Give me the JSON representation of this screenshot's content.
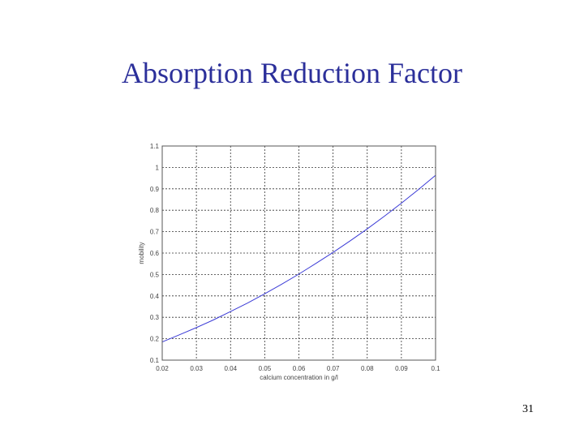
{
  "slide": {
    "title": "Absorption Reduction Factor",
    "page_number": "31"
  },
  "chart_data": {
    "type": "line",
    "xlabel": "calcium concentration in g/l",
    "ylabel": "mobility",
    "xlim": [
      0.02,
      0.1
    ],
    "ylim": [
      0.1,
      1.1
    ],
    "xticks": [
      "0.02",
      "0.03",
      "0.04",
      "0.05",
      "0.06",
      "0.07",
      "0.08",
      "0.09",
      "0.1"
    ],
    "yticks": [
      "0.1",
      "0.2",
      "0.3",
      "0.4",
      "0.5",
      "0.6",
      "0.7",
      "0.8",
      "0.9",
      "1",
      "1.1"
    ],
    "grid": true,
    "series": [
      {
        "color": "#3b3bd6",
        "x": [
          0.02,
          0.025,
          0.03,
          0.035,
          0.04,
          0.045,
          0.05,
          0.055,
          0.06,
          0.065,
          0.07,
          0.075,
          0.08,
          0.085,
          0.09,
          0.095,
          0.1
        ],
        "y": [
          0.185,
          0.218,
          0.252,
          0.288,
          0.327,
          0.367,
          0.41,
          0.455,
          0.502,
          0.552,
          0.603,
          0.657,
          0.713,
          0.772,
          0.833,
          0.897,
          0.963
        ]
      }
    ]
  }
}
